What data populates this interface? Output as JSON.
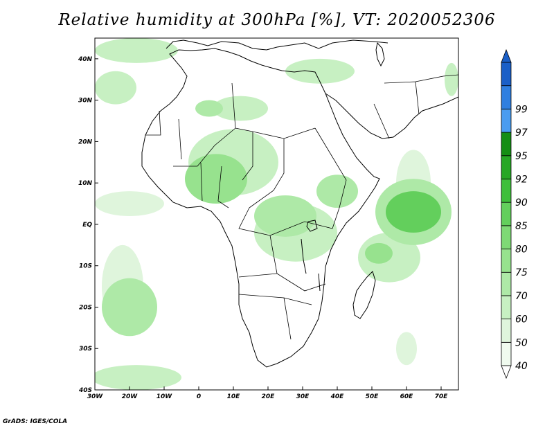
{
  "title": "Relative humidity at 300hPa [%], VT: 2020052306",
  "footer": "GrADS: IGES/COLA",
  "map": {
    "lon_range": [
      -30,
      75
    ],
    "lat_range": [
      -40,
      45
    ],
    "lon_ticks": [
      {
        "v": -30,
        "label": "30W"
      },
      {
        "v": -20,
        "label": "20W"
      },
      {
        "v": -10,
        "label": "10W"
      },
      {
        "v": 0,
        "label": "0"
      },
      {
        "v": 10,
        "label": "10E"
      },
      {
        "v": 20,
        "label": "20E"
      },
      {
        "v": 30,
        "label": "30E"
      },
      {
        "v": 40,
        "label": "40E"
      },
      {
        "v": 50,
        "label": "50E"
      },
      {
        "v": 60,
        "label": "60E"
      },
      {
        "v": 70,
        "label": "70E"
      }
    ],
    "lat_ticks": [
      {
        "v": 40,
        "label": "40N"
      },
      {
        "v": 30,
        "label": "30N"
      },
      {
        "v": 20,
        "label": "20N"
      },
      {
        "v": 10,
        "label": "10N"
      },
      {
        "v": 0,
        "label": "EQ"
      },
      {
        "v": -10,
        "label": "10S"
      },
      {
        "v": -20,
        "label": "20S"
      },
      {
        "v": -30,
        "label": "30S"
      },
      {
        "v": -40,
        "label": "40S"
      }
    ]
  },
  "colorbar": {
    "levels": [
      "40",
      "50",
      "60",
      "70",
      "75",
      "80",
      "85",
      "90",
      "92",
      "95",
      "97",
      "99"
    ],
    "colors": [
      "#f0fbef",
      "#dff5dc",
      "#c7f0c2",
      "#aee9a7",
      "#97e28e",
      "#7ed975",
      "#63cf5c",
      "#3fbf3b",
      "#27a725",
      "#158e14",
      "#4a9cf0",
      "#2f7fe0",
      "#1a5fc7"
    ],
    "arrows": {
      "bottom": "#ffffff",
      "top": "#1a5fc7"
    }
  },
  "humidity_patches": [
    {
      "lon": 62,
      "lat": 3,
      "rx": 8,
      "ry": 5,
      "level": 6
    },
    {
      "lon": 62,
      "lat": 3,
      "rx": 11,
      "ry": 8,
      "level": 3
    },
    {
      "lon": 52,
      "lat": -7,
      "rx": 4,
      "ry": 2.5,
      "level": 4
    },
    {
      "lon": 55,
      "lat": -8,
      "rx": 9,
      "ry": 6,
      "level": 2
    },
    {
      "lon": 5,
      "lat": 11,
      "rx": 9,
      "ry": 6,
      "level": 4
    },
    {
      "lon": 10,
      "lat": 15,
      "rx": 13,
      "ry": 8,
      "level": 2
    },
    {
      "lon": 25,
      "lat": 2,
      "rx": 9,
      "ry": 5,
      "level": 3
    },
    {
      "lon": 28,
      "lat": -2,
      "rx": 12,
      "ry": 7,
      "level": 2
    },
    {
      "lon": 40,
      "lat": 8,
      "rx": 6,
      "ry": 4,
      "level": 3
    },
    {
      "lon": 12,
      "lat": 28,
      "rx": 8,
      "ry": 3,
      "level": 2
    },
    {
      "lon": 3,
      "lat": 28,
      "rx": 4,
      "ry": 2,
      "level": 3
    },
    {
      "lon": -18,
      "lat": 42,
      "rx": 12,
      "ry": 3,
      "level": 2
    },
    {
      "lon": -24,
      "lat": 33,
      "rx": 6,
      "ry": 4,
      "level": 2
    },
    {
      "lon": -20,
      "lat": 5,
      "rx": 10,
      "ry": 3,
      "level": 1
    },
    {
      "lon": -20,
      "lat": -20,
      "rx": 8,
      "ry": 7,
      "level": 3
    },
    {
      "lon": -22,
      "lat": -15,
      "rx": 6,
      "ry": 10,
      "level": 1
    },
    {
      "lon": -18,
      "lat": -37,
      "rx": 13,
      "ry": 3,
      "level": 2
    },
    {
      "lon": 35,
      "lat": 37,
      "rx": 10,
      "ry": 3,
      "level": 2
    },
    {
      "lon": 62,
      "lat": 10,
      "rx": 5,
      "ry": 8,
      "level": 1
    },
    {
      "lon": 60,
      "lat": -30,
      "rx": 3,
      "ry": 4,
      "level": 1
    },
    {
      "lon": 73,
      "lat": 35,
      "rx": 2,
      "ry": 4,
      "level": 2
    }
  ]
}
